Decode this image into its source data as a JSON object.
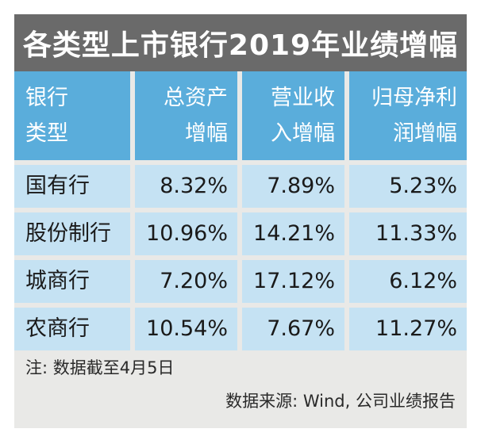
{
  "chart_data": {
    "type": "table",
    "title": "各类型上市银行2019年业绩增幅",
    "columns": [
      [
        "银行",
        "类型"
      ],
      [
        "总资产",
        "增幅"
      ],
      [
        "营业收",
        "入增幅"
      ],
      [
        "归母净利",
        "润增幅"
      ]
    ],
    "rows": [
      {
        "label": "国有行",
        "values": [
          "8.32%",
          "7.89%",
          "5.23%"
        ]
      },
      {
        "label": "股份制行",
        "values": [
          "10.96%",
          "14.21%",
          "11.33%"
        ]
      },
      {
        "label": "城商行",
        "values": [
          "7.20%",
          "17.12%",
          "6.12%"
        ]
      },
      {
        "label": "农商行",
        "values": [
          "10.54%",
          "7.67%",
          "11.27%"
        ]
      }
    ],
    "note": "注: 数据截至4月5日",
    "source": "数据来源: Wind, 公司业绩报告"
  },
  "colors": {
    "title_background": "#6a6a6a",
    "header_background": "#5aaddb",
    "cell_background": "#c5e2f3",
    "page_background": "#e9e9e7"
  }
}
